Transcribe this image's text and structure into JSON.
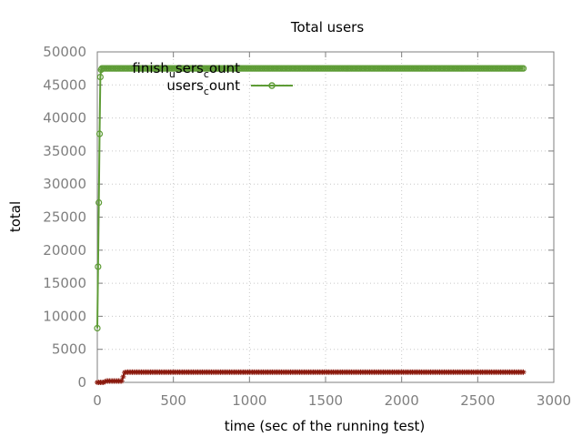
{
  "chart_data": {
    "type": "line",
    "title": "Total users",
    "xlabel": "time (sec of the running test)",
    "ylabel": "total",
    "xlim": [
      0,
      3000
    ],
    "ylim": [
      0,
      50000
    ],
    "x_ticks": [
      0,
      500,
      1000,
      1500,
      2000,
      2500,
      3000
    ],
    "y_ticks": [
      0,
      5000,
      10000,
      15000,
      20000,
      25000,
      30000,
      35000,
      40000,
      45000,
      50000
    ],
    "x_tick_labels": [
      "0",
      "500",
      "1000",
      "1500",
      "2000",
      "2500",
      "3000"
    ],
    "y_tick_labels": [
      "0",
      "5000",
      "10000",
      "15000",
      "20000",
      "25000",
      "30000",
      "35000",
      "40000",
      "45000",
      "50000"
    ],
    "grid": true,
    "legend_position": "top-left",
    "series": [
      {
        "name_main": "finish",
        "name_sub": "u",
        "name_rest": "sers",
        "name_sub2": "c",
        "name_rest2": "ount",
        "color": "#8b1a0e",
        "marker": "star",
        "x": [
          0,
          10,
          20,
          30,
          40,
          60,
          80,
          100,
          120,
          140,
          160,
          180,
          200,
          400,
          800,
          1200,
          1600,
          2000,
          2400,
          2800
        ],
        "y": [
          0,
          0,
          0,
          0,
          0,
          200,
          200,
          200,
          200,
          200,
          200,
          1500,
          1550,
          1550,
          1550,
          1550,
          1550,
          1550,
          1550,
          1550
        ]
      },
      {
        "name_main": "users",
        "name_sub": "c",
        "name_rest": "ount",
        "color": "#5e9c36",
        "marker": "circle",
        "x": [
          0,
          5,
          10,
          15,
          20,
          25,
          30,
          40,
          60,
          100,
          200,
          400,
          800,
          1200,
          1600,
          2000,
          2400,
          2800
        ],
        "y": [
          8200,
          17500,
          27200,
          37600,
          46200,
          47300,
          47500,
          47500,
          47500,
          47500,
          47500,
          47500,
          47500,
          47500,
          47500,
          47500,
          47500,
          47500
        ]
      }
    ]
  }
}
